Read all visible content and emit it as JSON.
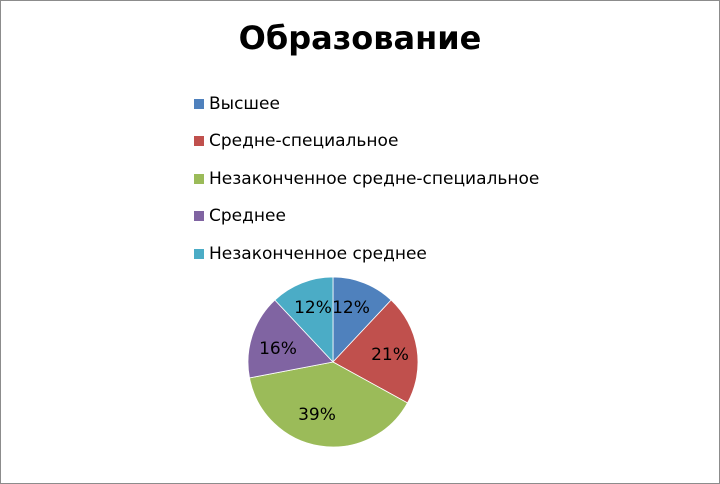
{
  "chart_data": {
    "type": "pie",
    "title": "Образование",
    "categories": [
      "Высшее",
      "Средне-специальное",
      "Незаконченное средне-специальное",
      "Среднее",
      "Незаконченное среднее"
    ],
    "values": [
      12,
      21,
      39,
      16,
      12
    ],
    "labels": [
      "12%",
      "21%",
      "39%",
      "16%",
      "12%"
    ],
    "colors": [
      "#4f81bd",
      "#c0504d",
      "#9bbb59",
      "#8064a2",
      "#4bacc6"
    ],
    "legend_position": "top"
  }
}
